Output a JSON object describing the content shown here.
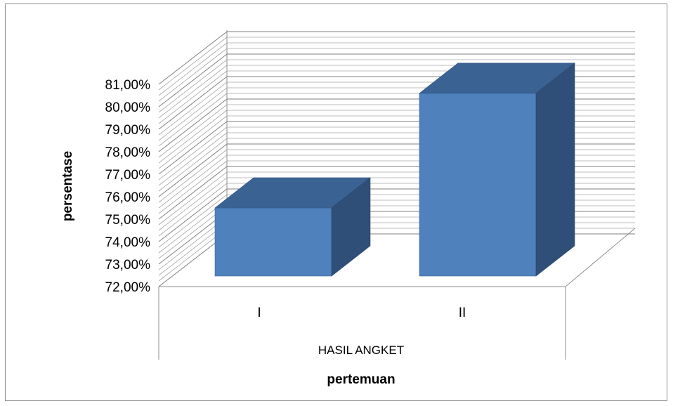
{
  "chart_data": {
    "type": "bar",
    "title": "",
    "categories": [
      "I",
      "II"
    ],
    "group_label": "HASIL ANGKET",
    "series": [
      {
        "values": [
          75.5,
          80.6
        ]
      }
    ],
    "xlabel": "pertemuan",
    "ylabel": "persentase",
    "ylim": [
      72,
      81
    ],
    "yticks": [
      "72,00%",
      "73,00%",
      "74,00%",
      "75,00%",
      "76,00%",
      "77,00%",
      "78,00%",
      "79,00%",
      "80,00%",
      "81,00%"
    ],
    "grid": true,
    "legend": "none",
    "style": "3d-column",
    "colors": {
      "front": "#4f81bd",
      "top": "#3a6394",
      "side": "#2f4f78",
      "grid": "#8c8c8c"
    }
  }
}
